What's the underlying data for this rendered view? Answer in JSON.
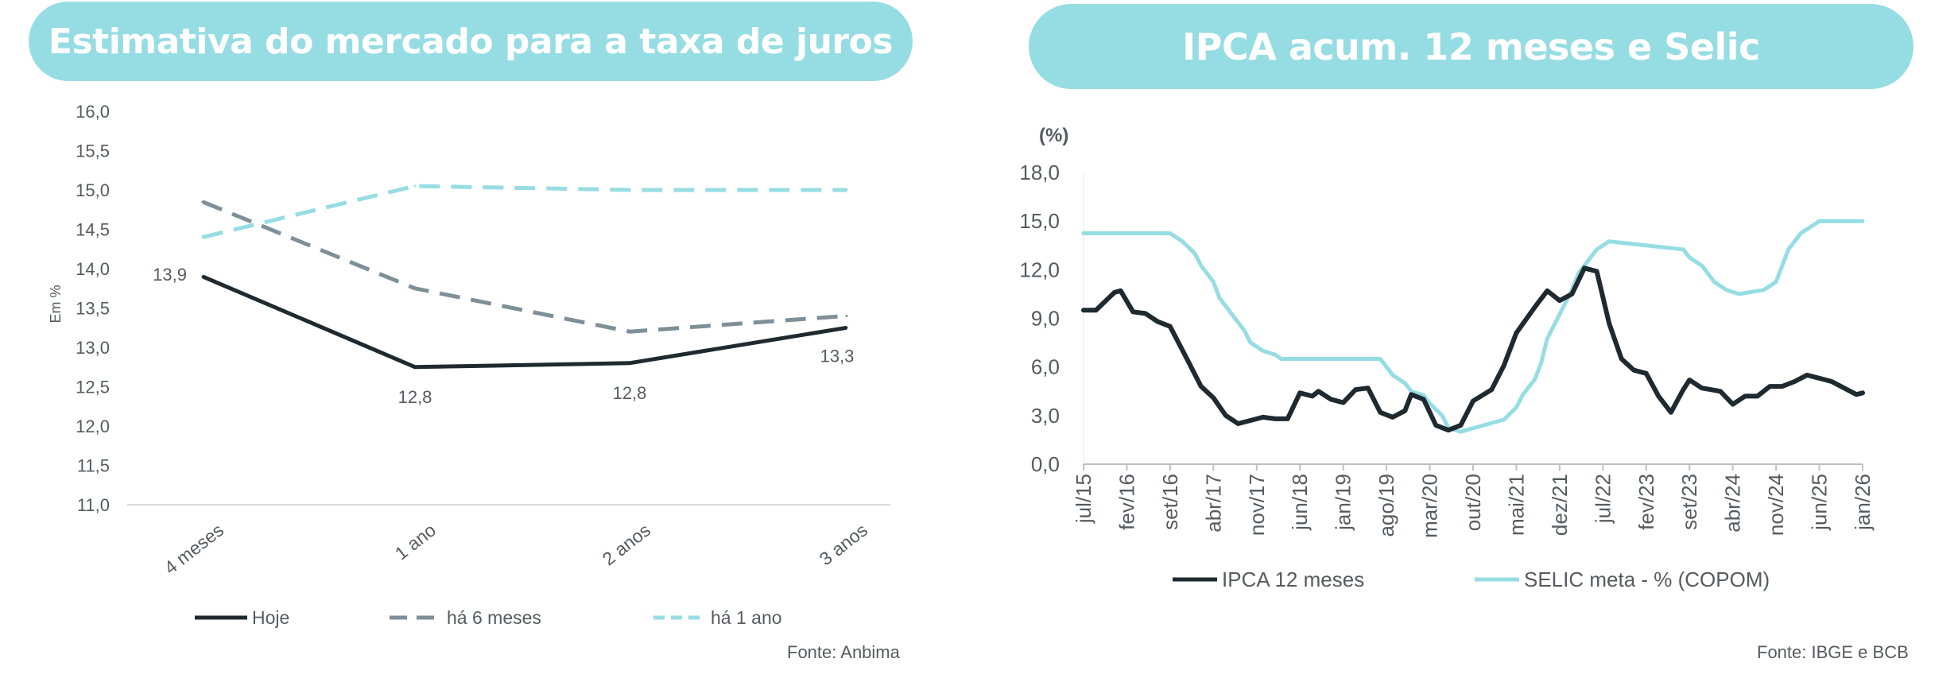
{
  "chart_data": [
    {
      "type": "line",
      "title": "Estimativa do mercado para a taxa de juros",
      "ylabel": "Em %",
      "ylim": [
        11.0,
        16.0
      ],
      "yticks": [
        "16,0",
        "15,5",
        "15,0",
        "14,5",
        "14,0",
        "13,5",
        "13,0",
        "12,5",
        "12,0",
        "11,5",
        "11,0"
      ],
      "categories": [
        "4 meses",
        "1 ano",
        "2 anos",
        "3 anos"
      ],
      "series": [
        {
          "name": "Hoje",
          "style": "solid",
          "color": "#1f2a30",
          "values": [
            13.9,
            12.75,
            12.8,
            13.25
          ]
        },
        {
          "name": "há 6 meses",
          "style": "dashed",
          "color": "#7e8f98",
          "values": [
            14.85,
            13.75,
            13.2,
            13.4
          ]
        },
        {
          "name": "há 1 ano",
          "style": "dashed",
          "color": "#96dde3",
          "values": [
            14.4,
            15.05,
            15.0,
            15.0
          ]
        }
      ],
      "data_labels": [
        {
          "series": 0,
          "index": 0,
          "text": "13,9",
          "pos": "left"
        },
        {
          "series": 0,
          "index": 1,
          "text": "12,8",
          "pos": "below"
        },
        {
          "series": 0,
          "index": 2,
          "text": "12,8",
          "pos": "below"
        },
        {
          "series": 0,
          "index": 3,
          "text": "13,3",
          "pos": "below"
        }
      ],
      "legend_placement": "bottom",
      "source": "Fonte: Anbima"
    },
    {
      "type": "line",
      "title": "IPCA acum. 12 meses e Selic",
      "unit_label": "(%)",
      "ylim": [
        0,
        18
      ],
      "yticks": [
        "18,0",
        "15,0",
        "12,0",
        "9,0",
        "6,0",
        "3,0",
        "0,0"
      ],
      "x_start": "2015-07",
      "x_end": "2026-01",
      "xticks": [
        "jul/15",
        "fev/16",
        "set/16",
        "abr/17",
        "nov/17",
        "jun/18",
        "jan/19",
        "ago/19",
        "mar/20",
        "out/20",
        "mai/21",
        "dez/21",
        "jul/22",
        "fev/23",
        "set/23",
        "abr/24",
        "nov/24",
        "jun/25",
        "jan/26"
      ],
      "series": [
        {
          "name": "IPCA 12 meses",
          "color": "#1f2a30",
          "points": [
            [
              "2015-07",
              9.5
            ],
            [
              "2015-09",
              9.5
            ],
            [
              "2015-12",
              10.6
            ],
            [
              "2016-01",
              10.7
            ],
            [
              "2016-03",
              9.4
            ],
            [
              "2016-05",
              9.3
            ],
            [
              "2016-07",
              8.8
            ],
            [
              "2016-09",
              8.5
            ],
            [
              "2016-12",
              6.3
            ],
            [
              "2017-02",
              4.8
            ],
            [
              "2017-04",
              4.1
            ],
            [
              "2017-06",
              3.0
            ],
            [
              "2017-08",
              2.5
            ],
            [
              "2017-10",
              2.7
            ],
            [
              "2017-12",
              2.9
            ],
            [
              "2018-02",
              2.8
            ],
            [
              "2018-04",
              2.8
            ],
            [
              "2018-06",
              4.4
            ],
            [
              "2018-08",
              4.2
            ],
            [
              "2018-09",
              4.5
            ],
            [
              "2018-11",
              4.0
            ],
            [
              "2019-01",
              3.8
            ],
            [
              "2019-03",
              4.6
            ],
            [
              "2019-05",
              4.7
            ],
            [
              "2019-07",
              3.2
            ],
            [
              "2019-09",
              2.9
            ],
            [
              "2019-11",
              3.3
            ],
            [
              "2019-12",
              4.3
            ],
            [
              "2020-02",
              4.0
            ],
            [
              "2020-04",
              2.4
            ],
            [
              "2020-06",
              2.1
            ],
            [
              "2020-08",
              2.4
            ],
            [
              "2020-10",
              3.9
            ],
            [
              "2021-01",
              4.6
            ],
            [
              "2021-03",
              6.1
            ],
            [
              "2021-05",
              8.1
            ],
            [
              "2021-08",
              9.7
            ],
            [
              "2021-10",
              10.7
            ],
            [
              "2021-12",
              10.1
            ],
            [
              "2022-02",
              10.5
            ],
            [
              "2022-04",
              12.1
            ],
            [
              "2022-06",
              11.9
            ],
            [
              "2022-08",
              8.7
            ],
            [
              "2022-10",
              6.5
            ],
            [
              "2022-12",
              5.8
            ],
            [
              "2023-02",
              5.6
            ],
            [
              "2023-04",
              4.2
            ],
            [
              "2023-06",
              3.2
            ],
            [
              "2023-08",
              4.6
            ],
            [
              "2023-09",
              5.2
            ],
            [
              "2023-11",
              4.7
            ],
            [
              "2024-02",
              4.5
            ],
            [
              "2024-04",
              3.7
            ],
            [
              "2024-06",
              4.2
            ],
            [
              "2024-08",
              4.2
            ],
            [
              "2024-10",
              4.8
            ],
            [
              "2024-12",
              4.8
            ],
            [
              "2025-02",
              5.1
            ],
            [
              "2025-04",
              5.5
            ],
            [
              "2025-06",
              5.3
            ],
            [
              "2025-08",
              5.1
            ],
            [
              "2025-10",
              4.7
            ],
            [
              "2025-12",
              4.3
            ],
            [
              "2026-01",
              4.4
            ]
          ]
        },
        {
          "name": "SELIC meta - % (COPOM)",
          "color": "#96dde3",
          "points": [
            [
              "2015-07",
              14.25
            ],
            [
              "2016-09",
              14.25
            ],
            [
              "2016-10",
              14.0
            ],
            [
              "2016-11",
              13.75
            ],
            [
              "2017-01",
              13.0
            ],
            [
              "2017-02",
              12.25
            ],
            [
              "2017-04",
              11.25
            ],
            [
              "2017-05",
              10.25
            ],
            [
              "2017-07",
              9.25
            ],
            [
              "2017-09",
              8.25
            ],
            [
              "2017-10",
              7.5
            ],
            [
              "2017-12",
              7.0
            ],
            [
              "2018-02",
              6.75
            ],
            [
              "2018-03",
              6.5
            ],
            [
              "2019-07",
              6.5
            ],
            [
              "2019-08",
              6.0
            ],
            [
              "2019-09",
              5.5
            ],
            [
              "2019-11",
              5.0
            ],
            [
              "2019-12",
              4.5
            ],
            [
              "2020-02",
              4.25
            ],
            [
              "2020-03",
              3.75
            ],
            [
              "2020-05",
              3.0
            ],
            [
              "2020-06",
              2.25
            ],
            [
              "2020-08",
              2.0
            ],
            [
              "2021-03",
              2.75
            ],
            [
              "2021-05",
              3.5
            ],
            [
              "2021-06",
              4.25
            ],
            [
              "2021-08",
              5.25
            ],
            [
              "2021-09",
              6.25
            ],
            [
              "2021-10",
              7.75
            ],
            [
              "2021-12",
              9.25
            ],
            [
              "2022-02",
              10.75
            ],
            [
              "2022-03",
              11.75
            ],
            [
              "2022-05",
              12.75
            ],
            [
              "2022-06",
              13.25
            ],
            [
              "2022-08",
              13.75
            ],
            [
              "2023-08",
              13.25
            ],
            [
              "2023-09",
              12.75
            ],
            [
              "2023-11",
              12.25
            ],
            [
              "2023-12",
              11.75
            ],
            [
              "2024-01",
              11.25
            ],
            [
              "2024-03",
              10.75
            ],
            [
              "2024-05",
              10.5
            ],
            [
              "2024-09",
              10.75
            ],
            [
              "2024-11",
              11.25
            ],
            [
              "2024-12",
              12.25
            ],
            [
              "2025-01",
              13.25
            ],
            [
              "2025-03",
              14.25
            ],
            [
              "2025-05",
              14.75
            ],
            [
              "2025-06",
              15.0
            ],
            [
              "2026-01",
              15.0
            ]
          ]
        }
      ],
      "legend_placement": "bottom",
      "source": "Fonte: IBGE e BCB"
    }
  ]
}
